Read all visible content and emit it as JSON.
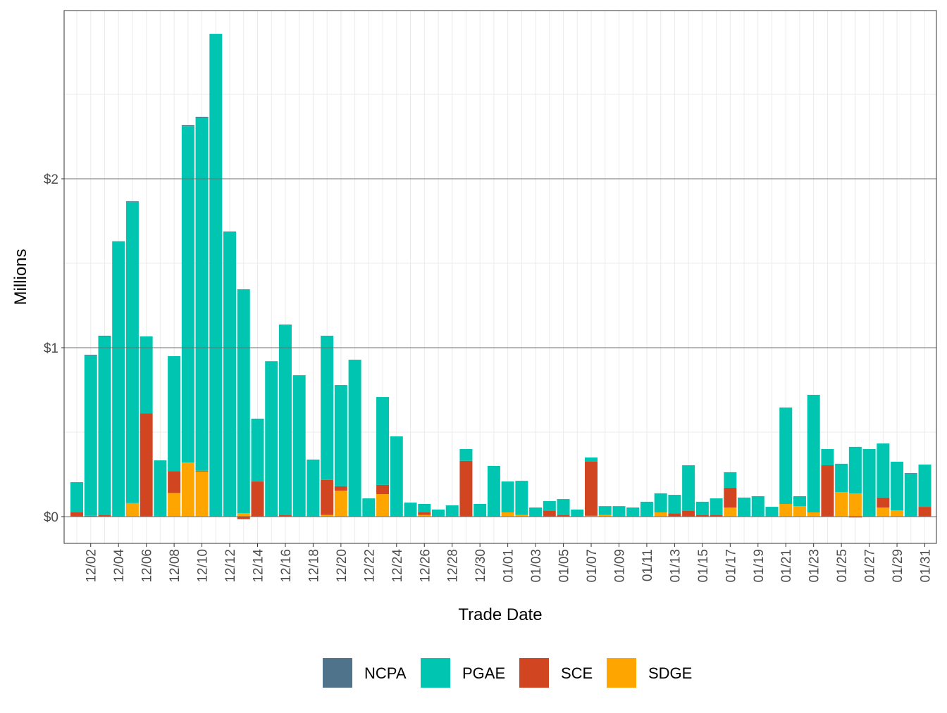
{
  "chart_data": {
    "type": "bar",
    "stacked": true,
    "xlabel": "Trade Date",
    "ylabel": "Millions",
    "ylim": [
      -0.16,
      3.0
    ],
    "y_ticks": [
      0,
      1,
      2
    ],
    "y_tick_labels": [
      "$0",
      "$1",
      "$2"
    ],
    "grid": true,
    "legend_position": "bottom",
    "categories": [
      "12/01",
      "12/02",
      "12/03",
      "12/04",
      "12/05",
      "12/06",
      "12/07",
      "12/08",
      "12/09",
      "12/10",
      "12/11",
      "12/12",
      "12/13",
      "12/14",
      "12/15",
      "12/16",
      "12/17",
      "12/18",
      "12/19",
      "12/20",
      "12/21",
      "12/22",
      "12/23",
      "12/24",
      "12/25",
      "12/26",
      "12/27",
      "12/28",
      "12/29",
      "12/30",
      "12/31",
      "01/01",
      "01/02",
      "01/03",
      "01/04",
      "01/05",
      "01/06",
      "01/07",
      "01/08",
      "01/09",
      "01/10",
      "01/11",
      "01/12",
      "01/13",
      "01/14",
      "01/15",
      "01/16",
      "01/17",
      "01/18",
      "01/19",
      "01/20",
      "01/21",
      "01/22",
      "01/23",
      "01/24",
      "01/25",
      "01/26",
      "01/27",
      "01/28",
      "01/29",
      "01/30",
      "01/31"
    ],
    "x_tick_labels": [
      "12/02",
      "12/04",
      "12/06",
      "12/08",
      "12/10",
      "12/12",
      "12/14",
      "12/16",
      "12/18",
      "12/20",
      "12/22",
      "12/24",
      "12/26",
      "12/28",
      "12/30",
      "01/01",
      "01/03",
      "01/05",
      "01/07",
      "01/09",
      "01/11",
      "01/13",
      "01/15",
      "01/17",
      "01/19",
      "01/21",
      "01/23",
      "01/25",
      "01/27",
      "01/29",
      "01/31"
    ],
    "series": [
      {
        "name": "SDGE",
        "color": "#ffa500",
        "values": [
          0,
          0,
          0,
          0,
          0.08,
          0,
          0,
          0.14,
          0.32,
          0.267,
          0,
          0,
          0.02,
          0,
          0,
          0,
          0,
          0,
          0.01,
          0.154,
          0,
          0,
          0.133,
          0,
          0,
          0.01,
          0,
          0,
          0,
          0,
          0,
          0.025,
          0.01,
          0,
          0,
          0,
          0,
          0.005,
          0.01,
          0,
          0,
          0,
          0.025,
          0,
          0,
          0,
          0,
          0.054,
          0,
          0,
          0,
          0.075,
          0.062,
          0.025,
          0,
          0.146,
          0.138,
          0,
          0.054,
          0.037,
          0,
          0
        ]
      },
      {
        "name": "SCE",
        "color": "#d14520",
        "values": [
          0.025,
          0.005,
          0.01,
          0,
          0,
          0.612,
          0,
          0.13,
          0,
          0.005,
          0,
          0,
          -0.015,
          0.208,
          0,
          0.01,
          0,
          0,
          0.207,
          0.026,
          0,
          0,
          0.055,
          0,
          0,
          0.015,
          0,
          0,
          0.33,
          0,
          0,
          0,
          0,
          0,
          0.035,
          0.01,
          0,
          0.32,
          0,
          0,
          0,
          0,
          0,
          0.02,
          0.035,
          0.01,
          0.01,
          0.117,
          0,
          0,
          0,
          0,
          0,
          0,
          0.304,
          0,
          -0.005,
          0,
          0.059,
          0,
          0,
          0.058
        ]
      },
      {
        "name": "PGAE",
        "color": "#00c5b0",
        "values": [
          0.179,
          0.948,
          1.057,
          1.63,
          1.783,
          0.455,
          0.333,
          0.68,
          1.992,
          2.09,
          2.858,
          1.685,
          1.326,
          0.372,
          0.92,
          1.127,
          0.837,
          0.338,
          0.854,
          0.599,
          0.929,
          0.108,
          0.52,
          0.475,
          0.083,
          0.05,
          0.042,
          0.067,
          0.07,
          0.075,
          0.3,
          0.183,
          0.202,
          0.054,
          0.057,
          0.094,
          0.042,
          0.025,
          0.052,
          0.062,
          0.054,
          0.088,
          0.113,
          0.109,
          0.269,
          0.078,
          0.098,
          0.092,
          0.113,
          0.121,
          0.058,
          0.571,
          0.059,
          0.696,
          0.096,
          0.167,
          0.275,
          0.4,
          0.32,
          0.288,
          0.255,
          0.25
        ]
      },
      {
        "name": "NCPA",
        "color": "#4e738a",
        "values": [
          0,
          0.005,
          0.004,
          0,
          0.004,
          0,
          0,
          0,
          0.005,
          0.005,
          0,
          0.003,
          0,
          0,
          0,
          0,
          0,
          0,
          0,
          0,
          0,
          0,
          0,
          0,
          0,
          0,
          0,
          0,
          0,
          0,
          0,
          0,
          0,
          0,
          0,
          0,
          0,
          0,
          0,
          0,
          0,
          0,
          0,
          0,
          0,
          0,
          0,
          0,
          0,
          0,
          0,
          0,
          0,
          0,
          0,
          0,
          0,
          0,
          0,
          0,
          0.003,
          0
        ]
      }
    ],
    "legend": [
      "NCPA",
      "PGAE",
      "SCE",
      "SDGE"
    ]
  }
}
